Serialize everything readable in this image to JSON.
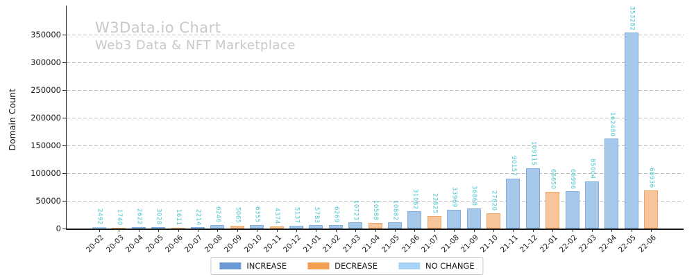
{
  "chart_data": {
    "type": "bar",
    "title": "W3Data.io Chart",
    "subtitle": "Web3 Data & NFT Marketplace",
    "ylabel": "Domain Count",
    "xlabel": "",
    "categories": [
      "20-02",
      "20-03",
      "20-04",
      "20-05",
      "20-06",
      "20-07",
      "20-08",
      "20-09",
      "20-10",
      "20-11",
      "20-12",
      "21-01",
      "21-02",
      "21-03",
      "21-04",
      "21-05",
      "21-06",
      "21-07",
      "21-08",
      "21-09",
      "21-10",
      "21-11",
      "21-12",
      "22-01",
      "22-02",
      "22-03",
      "22-04",
      "22-05",
      "22-06"
    ],
    "values": [
      2492,
      1740,
      2622,
      3028,
      1611,
      2214,
      6246,
      5065,
      6355,
      4374,
      5137,
      5783,
      6269,
      10723,
      10588,
      10882,
      31082,
      22825,
      33969,
      36868,
      27620,
      90157,
      109115,
      66650,
      66996,
      85004,
      162480,
      353282,
      68936
    ],
    "bar_types": [
      "no_change",
      "decrease",
      "increase",
      "increase",
      "decrease",
      "increase",
      "increase",
      "decrease",
      "increase",
      "decrease",
      "increase",
      "increase",
      "increase",
      "increase",
      "decrease",
      "increase",
      "increase",
      "decrease",
      "increase",
      "increase",
      "decrease",
      "increase",
      "increase",
      "decrease",
      "increase",
      "increase",
      "increase",
      "increase",
      "decrease"
    ],
    "yticks": [
      0,
      50000,
      100000,
      150000,
      200000,
      250000,
      300000,
      350000
    ],
    "ylim": [
      0,
      385000
    ],
    "grid": "horizontal-dashed",
    "legend_position": "bottom-center",
    "legend": [
      {
        "label": "INCREASE",
        "type": "increase"
      },
      {
        "label": "DECREASE",
        "type": "decrease"
      },
      {
        "label": "NO CHANGE",
        "type": "no_change"
      }
    ],
    "colors": {
      "increase": "#6b9bd2",
      "increase_fill": "#a6c8ea",
      "decrease": "#f0a050",
      "decrease_fill": "#f7c59b",
      "no_change": "#a8d4f8",
      "no_change_fill": "#bcdcf8",
      "value_label": "#48c5cc",
      "title": "#c8c8c8",
      "grid": "#b9b9b9",
      "axis": "#262626"
    }
  }
}
